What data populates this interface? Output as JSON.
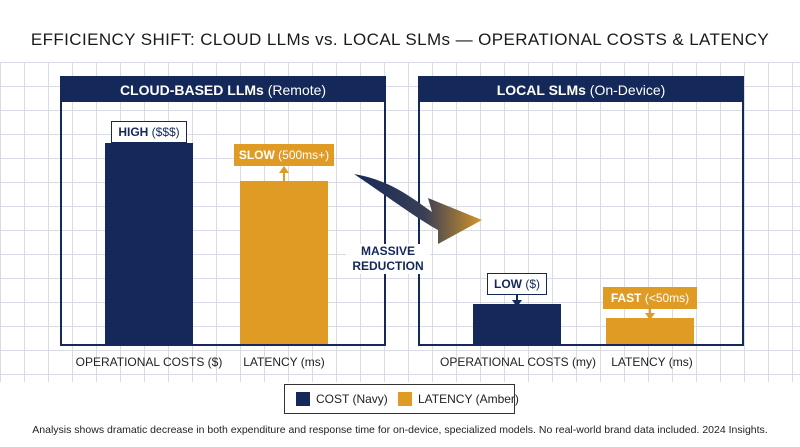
{
  "title": "EFFICIENCY SHIFT: CLOUD LLMs vs. LOCAL SLMs — OPERATIONAL COSTS & LATENCY",
  "panels": {
    "cloud": {
      "title_bold": "CLOUD-BASED LLMs",
      "title_rest": " (Remote)",
      "cost": {
        "label_bold": "HIGH",
        "label_rest": " ($$$)"
      },
      "latency": {
        "label_bold": "SLOW",
        "label_rest": " (500ms+)"
      },
      "xlabel_cost": "OPERATIONAL COSTS ($)",
      "xlabel_latency": "LATENCY (ms)"
    },
    "local": {
      "title_bold": "LOCAL SLMs",
      "title_rest": " (On-Device)",
      "cost": {
        "label_bold": "LOW",
        "label_rest": " ($)"
      },
      "latency": {
        "label_bold": "FAST",
        "label_rest": " (<50ms)"
      },
      "xlabel_cost": "OPERATIONAL COSTS (my)",
      "xlabel_latency": "LATENCY (ms)"
    }
  },
  "arrow_text_1": "MASSIVE",
  "arrow_text_2": "REDUCTION",
  "legend": {
    "cost": "COST (Navy)",
    "latency": "LATENCY (Amber)"
  },
  "footnote": "Analysis shows dramatic decrease in both expenditure and response time for on-device, specialized models. No real-world brand data included. 2024 Insights.",
  "colors": {
    "navy": "#14295a",
    "amber": "#e09b25"
  },
  "chart_data": [
    {
      "type": "bar",
      "categories": [
        "OPERATIONAL COSTS ($)",
        "LATENCY (ms)"
      ],
      "series": [
        {
          "name": "COST (Navy)",
          "values": [
            0.85,
            null
          ]
        },
        {
          "name": "LATENCY (Amber)",
          "values": [
            null,
            0.69
          ]
        }
      ],
      "title": "CLOUD-BASED LLMs (Remote)",
      "xlabel": "",
      "ylabel": "",
      "ylim": [
        0,
        1
      ],
      "grid": true
    },
    {
      "type": "bar",
      "categories": [
        "OPERATIONAL COSTS ($)",
        "LATENCY (ms)"
      ],
      "series": [
        {
          "name": "COST (Navy)",
          "values": [
            0.17,
            null
          ]
        },
        {
          "name": "LATENCY (Amber)",
          "values": [
            null,
            0.11
          ]
        }
      ],
      "title": "LOCAL SLMs (On-Device)",
      "xlabel": "",
      "ylabel": "",
      "ylim": [
        0,
        1
      ],
      "grid": true
    }
  ]
}
